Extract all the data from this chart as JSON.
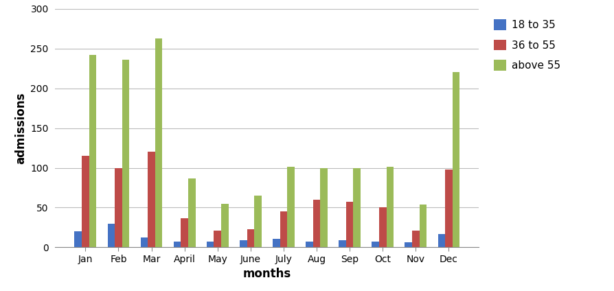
{
  "months": [
    "Jan",
    "Feb",
    "Mar",
    "April",
    "May",
    "June",
    "July",
    "Aug",
    "Sep",
    "Oct",
    "Nov",
    "Dec"
  ],
  "series": {
    "18 to 35": [
      20,
      30,
      12,
      7,
      7,
      9,
      11,
      7,
      9,
      7,
      6,
      17
    ],
    "36 to 55": [
      115,
      100,
      120,
      37,
      21,
      23,
      45,
      60,
      57,
      50,
      21,
      98
    ],
    "above 55": [
      242,
      236,
      263,
      87,
      55,
      65,
      101,
      100,
      100,
      101,
      54,
      220
    ]
  },
  "colors": {
    "18 to 35": "#4472C4",
    "36 to 55": "#BE4B48",
    "above 55": "#9BBB59"
  },
  "ylim": [
    0,
    300
  ],
  "yticks": [
    0,
    50,
    100,
    150,
    200,
    250,
    300
  ],
  "xlabel": "months",
  "ylabel": "admissions",
  "legend_labels": [
    "18 to 35",
    "36 to 55",
    "above 55"
  ],
  "bar_width": 0.22,
  "background_color": "#FFFFFF",
  "grid_color": "#BBBBBB",
  "axis_fontsize": 12,
  "tick_fontsize": 10,
  "legend_fontsize": 11
}
